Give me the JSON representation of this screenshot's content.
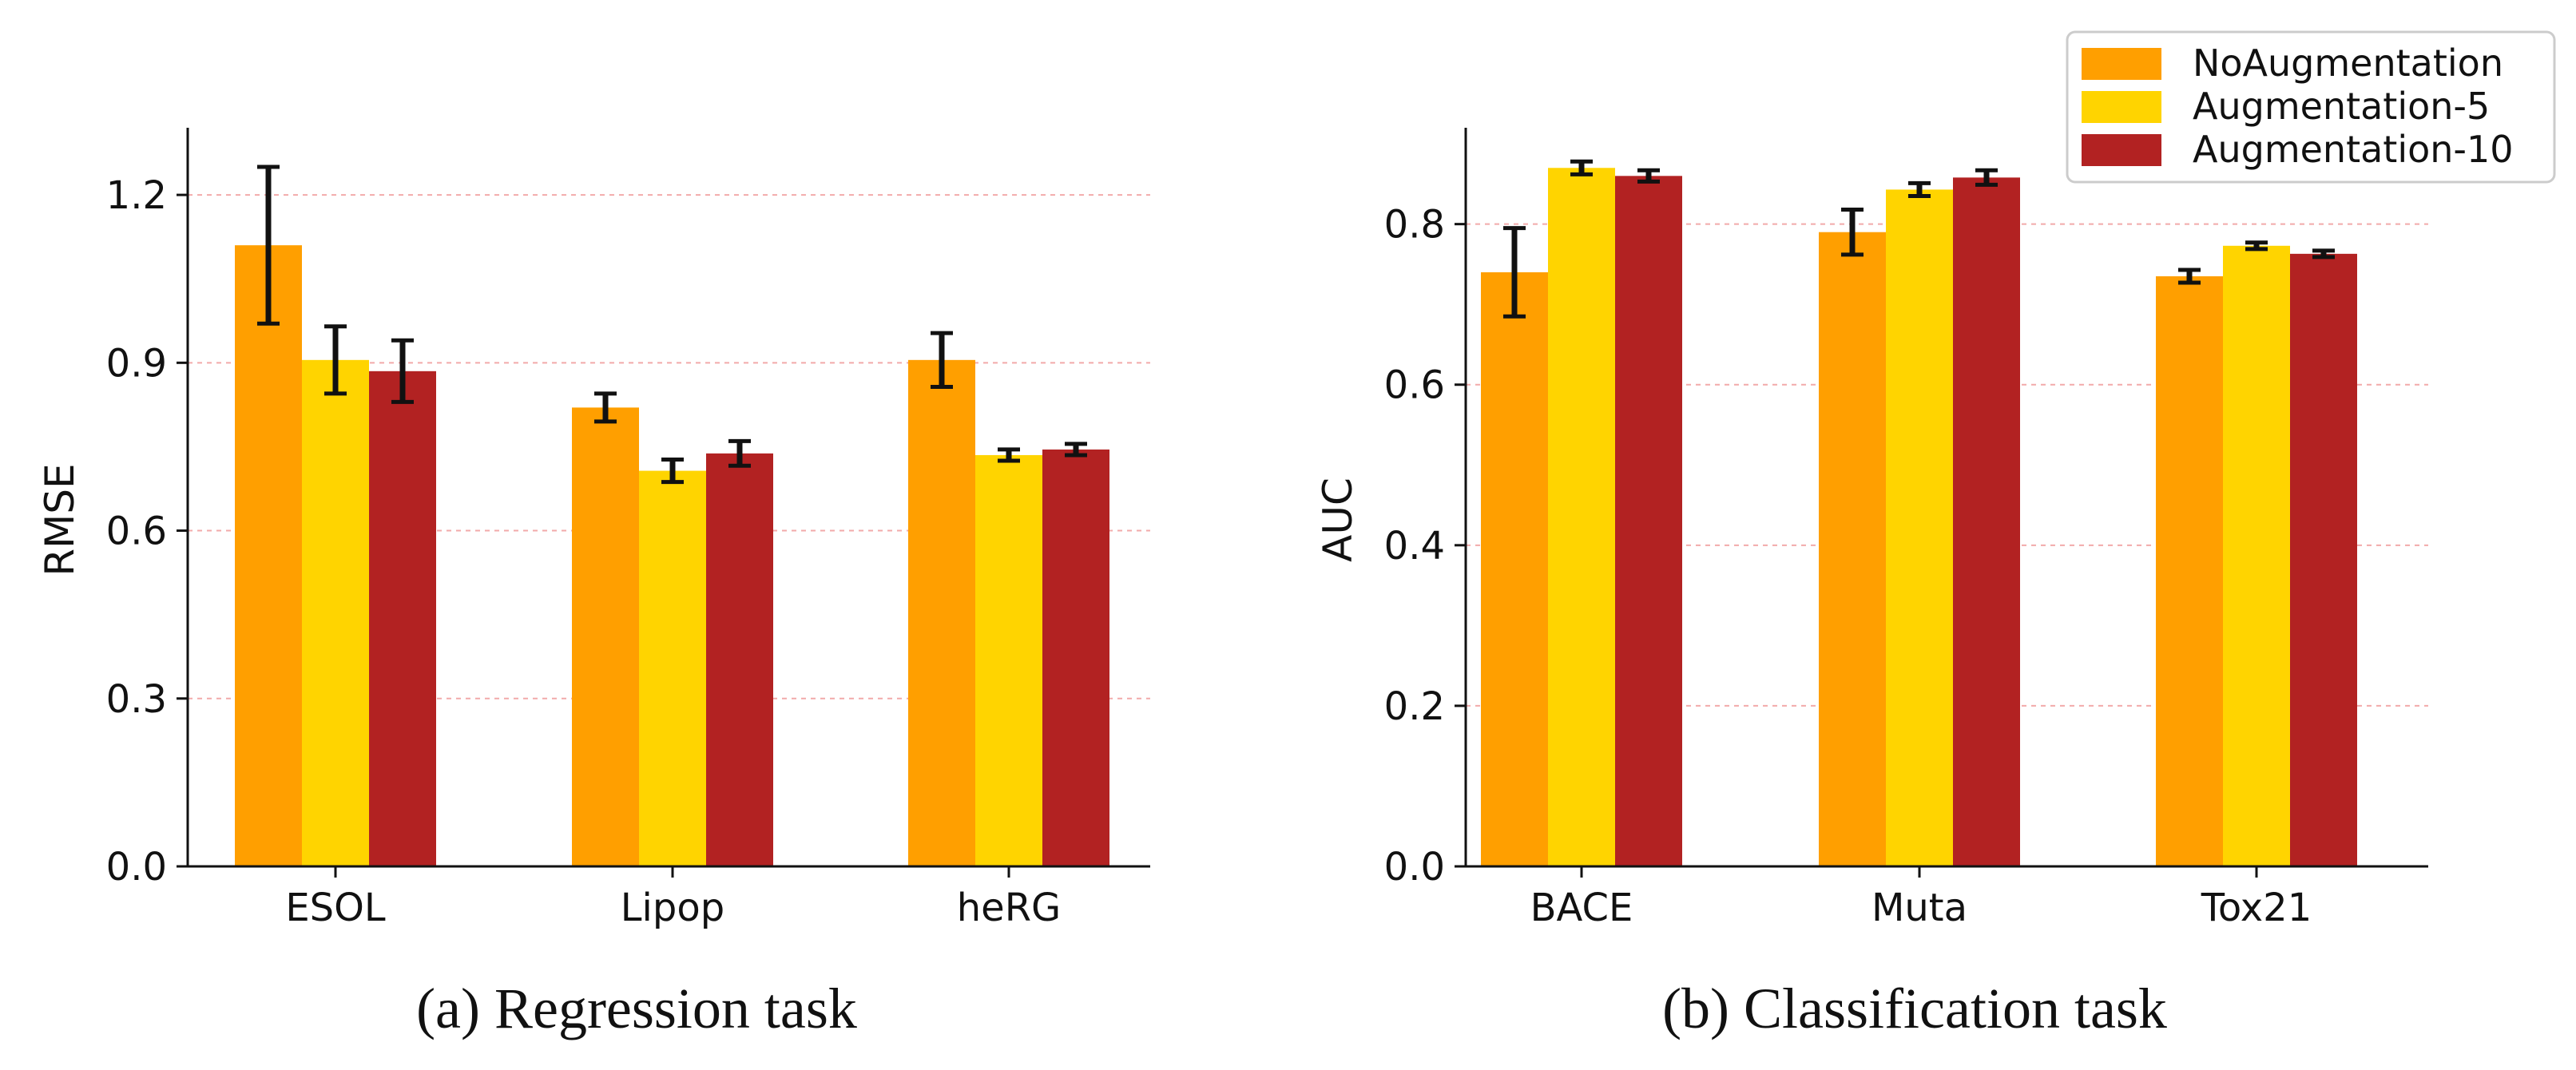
{
  "colors": {
    "NoAugmentation": "#ff9f00",
    "Augmentation-5": "#ffd400",
    "Augmentation-10": "#b22222",
    "grid": "#f2aaaa",
    "errorbar": "#111111"
  },
  "legend": {
    "items": [
      "NoAugmentation",
      "Augmentation-5",
      "Augmentation-10"
    ],
    "location": "top-right"
  },
  "chart_data": [
    {
      "type": "bar",
      "title": "(a) Regression task",
      "xlabel": "",
      "ylabel": "RMSE",
      "ylim": [
        0,
        1.32
      ],
      "yticks": [
        0.0,
        0.3,
        0.6,
        0.9,
        1.2
      ],
      "ytick_labels": [
        "0.0",
        "0.3",
        "0.6",
        "0.9",
        "1.2"
      ],
      "grid": "horizontal dashed",
      "categories": [
        "ESOL",
        "Lipop",
        "heRG"
      ],
      "series": [
        {
          "name": "NoAugmentation",
          "values": [
            1.11,
            0.82,
            0.905
          ],
          "errors": [
            0.14,
            0.025,
            0.048
          ]
        },
        {
          "name": "Augmentation-5",
          "values": [
            0.905,
            0.707,
            0.735
          ],
          "errors": [
            0.06,
            0.02,
            0.01
          ]
        },
        {
          "name": "Augmentation-10",
          "values": [
            0.885,
            0.738,
            0.745
          ],
          "errors": [
            0.055,
            0.022,
            0.01
          ]
        }
      ]
    },
    {
      "type": "bar",
      "title": "(b) Classification task",
      "xlabel": "",
      "ylabel": "AUC",
      "ylim": [
        0,
        0.92
      ],
      "yticks": [
        0.0,
        0.2,
        0.4,
        0.6,
        0.8
      ],
      "ytick_labels": [
        "0.0",
        "0.2",
        "0.4",
        "0.6",
        "0.8"
      ],
      "grid": "horizontal dashed",
      "categories": [
        "BACE",
        "Muta",
        "Tox21"
      ],
      "series": [
        {
          "name": "NoAugmentation",
          "values": [
            0.74,
            0.79,
            0.735
          ],
          "errors": [
            0.055,
            0.028,
            0.008
          ]
        },
        {
          "name": "Augmentation-5",
          "values": [
            0.87,
            0.843,
            0.773
          ],
          "errors": [
            0.008,
            0.008,
            0.004
          ]
        },
        {
          "name": "Augmentation-10",
          "values": [
            0.86,
            0.858,
            0.763
          ],
          "errors": [
            0.007,
            0.009,
            0.004
          ]
        }
      ]
    }
  ]
}
